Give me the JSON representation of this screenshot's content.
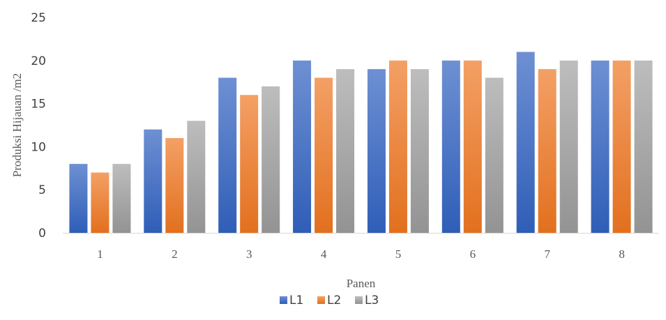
{
  "chart_data": {
    "type": "bar",
    "title": "",
    "xlabel": "Panen",
    "ylabel": "Produksi Hijauan /m2",
    "categories": [
      "1",
      "2",
      "3",
      "4",
      "5",
      "6",
      "7",
      "8"
    ],
    "series": [
      {
        "name": "L1",
        "values": [
          8,
          12,
          18,
          20,
          19,
          20,
          21,
          20
        ],
        "color": "#4472C4"
      },
      {
        "name": "L2",
        "values": [
          7,
          11,
          16,
          18,
          20,
          20,
          19,
          20
        ],
        "color": "#ED7D31"
      },
      {
        "name": "L3",
        "values": [
          8,
          13,
          17,
          19,
          19,
          18,
          20,
          20
        ],
        "color": "#A5A5A5"
      }
    ],
    "ylim": [
      0,
      25
    ],
    "yticks": [
      "0",
      "5",
      "10",
      "15",
      "20",
      "25"
    ],
    "grid": false,
    "legend": "bottom"
  }
}
